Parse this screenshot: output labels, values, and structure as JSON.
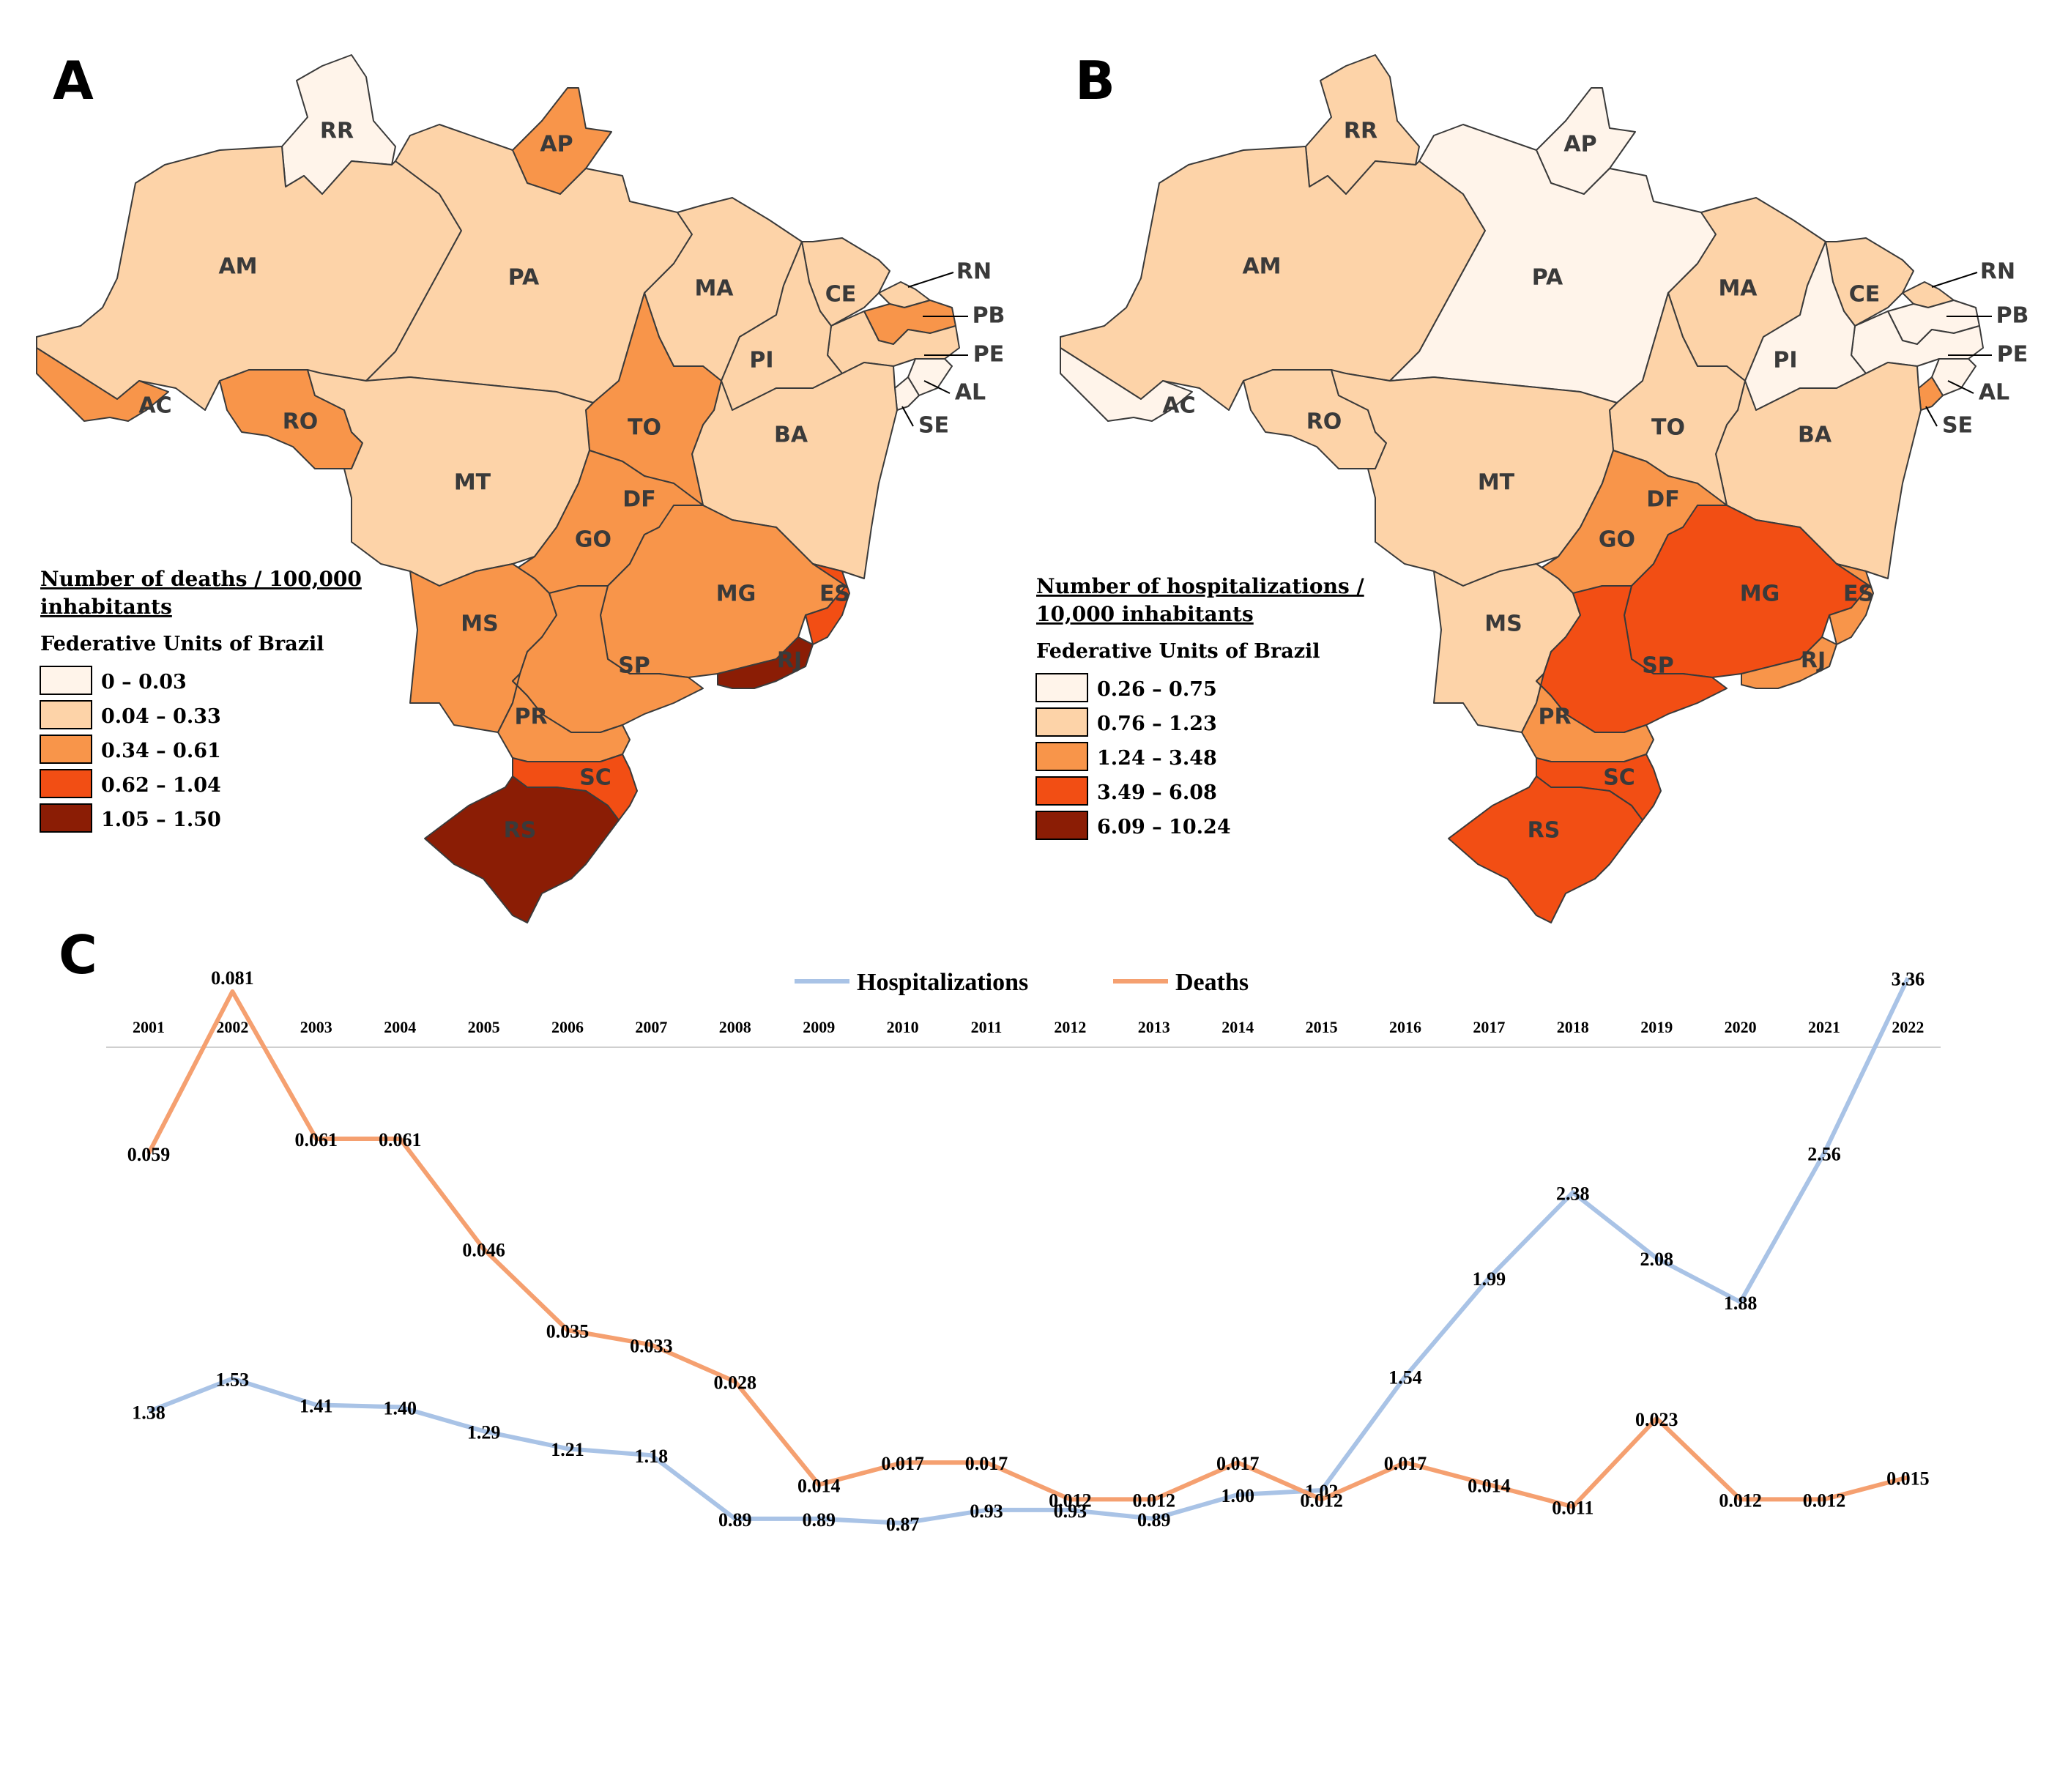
{
  "panels": {
    "a": "A",
    "b": "B",
    "c": "C"
  },
  "map_a": {
    "legend_title_1": "Number of deaths / 100,000",
    "legend_title_2": "inhabitants",
    "legend_subtitle": "Federative Units of Brazil",
    "classes": [
      {
        "label": "0 – 0.03",
        "color": "#fff4ea"
      },
      {
        "label": "0.04 – 0.33",
        "color": "#fdd3a8"
      },
      {
        "label": "0.34 – 0.61",
        "color": "#f8954a"
      },
      {
        "label": "0.62 – 1.04",
        "color": "#f24e14"
      },
      {
        "label": "1.05 – 1.50",
        "color": "#8b1d05"
      }
    ],
    "state_class": {
      "RR": 0,
      "AP": 2,
      "AM": 1,
      "PA": 1,
      "MA": 1,
      "CE": 1,
      "RN": 1,
      "PB": 2,
      "PE": 1,
      "AL": 0,
      "SE": 0,
      "PI": 1,
      "BA": 1,
      "TO": 2,
      "AC": 2,
      "RO": 2,
      "MT": 1,
      "DF": 2,
      "GO": 2,
      "MG": 2,
      "MS": 2,
      "SP": 2,
      "ES": 3,
      "RJ": 4,
      "PR": 2,
      "SC": 3,
      "RS": 4
    }
  },
  "map_b": {
    "legend_title_1": "Number of hospitalizations /",
    "legend_title_2": "10,000 inhabitants",
    "legend_subtitle": "Federative Units of Brazil",
    "classes": [
      {
        "label": "0.26 – 0.75",
        "color": "#fff4ea"
      },
      {
        "label": "0.76 – 1.23",
        "color": "#fdd3a8"
      },
      {
        "label": "1.24 – 3.48",
        "color": "#f8954a"
      },
      {
        "label": "3.49 – 6.08",
        "color": "#f24e14"
      },
      {
        "label": "6.09 – 10.24",
        "color": "#8b1d05"
      }
    ],
    "state_class": {
      "RR": 1,
      "AP": 0,
      "AM": 1,
      "PA": 0,
      "MA": 1,
      "CE": 1,
      "RN": 1,
      "PB": 0,
      "PE": 0,
      "AL": 0,
      "SE": 2,
      "PI": 0,
      "BA": 1,
      "TO": 1,
      "AC": 0,
      "RO": 1,
      "MT": 1,
      "DF": 4,
      "GO": 2,
      "MG": 3,
      "MS": 1,
      "SP": 3,
      "ES": 2,
      "RJ": 2,
      "PR": 2,
      "SC": 3,
      "RS": 3
    }
  },
  "state_labels": [
    "RR",
    "AP",
    "AM",
    "PA",
    "MA",
    "CE",
    "RN",
    "PB",
    "PE",
    "AL",
    "SE",
    "PI",
    "BA",
    "TO",
    "AC",
    "RO",
    "MT",
    "DF",
    "GO",
    "MG",
    "MS",
    "SP",
    "ES",
    "RJ",
    "PR",
    "SC",
    "RS"
  ],
  "chart_data": {
    "type": "line",
    "x": [
      "2001",
      "2002",
      "2003",
      "2004",
      "2005",
      "2006",
      "2007",
      "2008",
      "2009",
      "2010",
      "2011",
      "2012",
      "2013",
      "2014",
      "2015",
      "2016",
      "2017",
      "2018",
      "2019",
      "2020",
      "2021",
      "2022"
    ],
    "series": [
      {
        "name": "Hospitalizations",
        "color": "#a9c3e6",
        "values": [
          1.38,
          1.53,
          1.41,
          1.4,
          1.29,
          1.21,
          1.18,
          0.89,
          0.89,
          0.87,
          0.93,
          0.93,
          0.89,
          1.0,
          1.02,
          1.54,
          1.99,
          2.38,
          2.08,
          1.88,
          2.56,
          3.36
        ],
        "labels": [
          "1.38",
          "1.53",
          "1.41",
          "1.40",
          "1.29",
          "1.21",
          "1.18",
          "0.89",
          "0.89",
          "0.87",
          "0.93",
          "0.93",
          "0.89",
          "1.00",
          "1.02",
          "1.54",
          "1.99",
          "2.38",
          "2.08",
          "1.88",
          "2.56",
          "3.36"
        ]
      },
      {
        "name": "Deaths",
        "color": "#f5a070",
        "values": [
          0.059,
          0.081,
          0.061,
          0.061,
          0.046,
          0.035,
          0.033,
          0.028,
          0.014,
          0.017,
          0.017,
          0.012,
          0.012,
          0.017,
          0.012,
          0.017,
          0.014,
          0.011,
          0.023,
          0.012,
          0.012,
          0.015
        ],
        "labels": [
          "0.059",
          "0.081",
          "0.061",
          "0.061",
          "0.046",
          "0.035",
          "0.033",
          "0.028",
          "0.014",
          "0.017",
          "0.017",
          "0.012",
          "0.012",
          "0.017",
          "0.012",
          "0.017",
          "0.014",
          "0.011",
          "0.023",
          "0.012",
          "0.012",
          "0.015"
        ]
      }
    ],
    "legend_position": "top-center",
    "grid": false
  }
}
